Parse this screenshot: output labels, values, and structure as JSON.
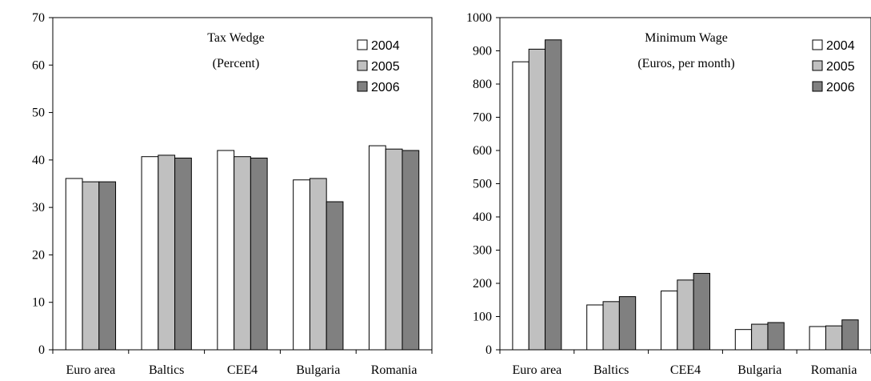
{
  "colors": {
    "2004": "#ffffff",
    "2005": "#c0c0c0",
    "2006": "#808080",
    "stroke": "#000000"
  },
  "chart_data": [
    {
      "type": "bar",
      "title": "Tax Wedge",
      "subtitle": "(Percent)",
      "categories": [
        "Euro area",
        "Baltics",
        "CEE4",
        "Bulgaria",
        "Romania"
      ],
      "series": [
        {
          "name": "2004",
          "values": [
            36.1,
            40.7,
            42.0,
            35.8,
            43.0
          ]
        },
        {
          "name": "2005",
          "values": [
            35.4,
            41.0,
            40.7,
            36.1,
            42.3
          ]
        },
        {
          "name": "2006",
          "values": [
            35.4,
            40.4,
            40.4,
            31.2,
            42.0
          ]
        }
      ],
      "ylim": [
        0,
        70
      ],
      "yticks": [
        0,
        10,
        20,
        30,
        40,
        50,
        60,
        70
      ],
      "grid": false,
      "legend": "top-right"
    },
    {
      "type": "bar",
      "title": "Minimum Wage",
      "subtitle": "(Euros, per month)",
      "categories": [
        "Euro area",
        "Baltics",
        "CEE4",
        "Bulgaria",
        "Romania"
      ],
      "series": [
        {
          "name": "2004",
          "values": [
            867,
            135,
            177,
            61,
            70
          ]
        },
        {
          "name": "2005",
          "values": [
            905,
            145,
            210,
            77,
            72
          ]
        },
        {
          "name": "2006",
          "values": [
            933,
            160,
            230,
            82,
            90
          ]
        }
      ],
      "ylim": [
        0,
        1000
      ],
      "yticks": [
        0,
        100,
        200,
        300,
        400,
        500,
        600,
        700,
        800,
        900,
        1000
      ],
      "grid": false,
      "legend": "top-right"
    }
  ]
}
